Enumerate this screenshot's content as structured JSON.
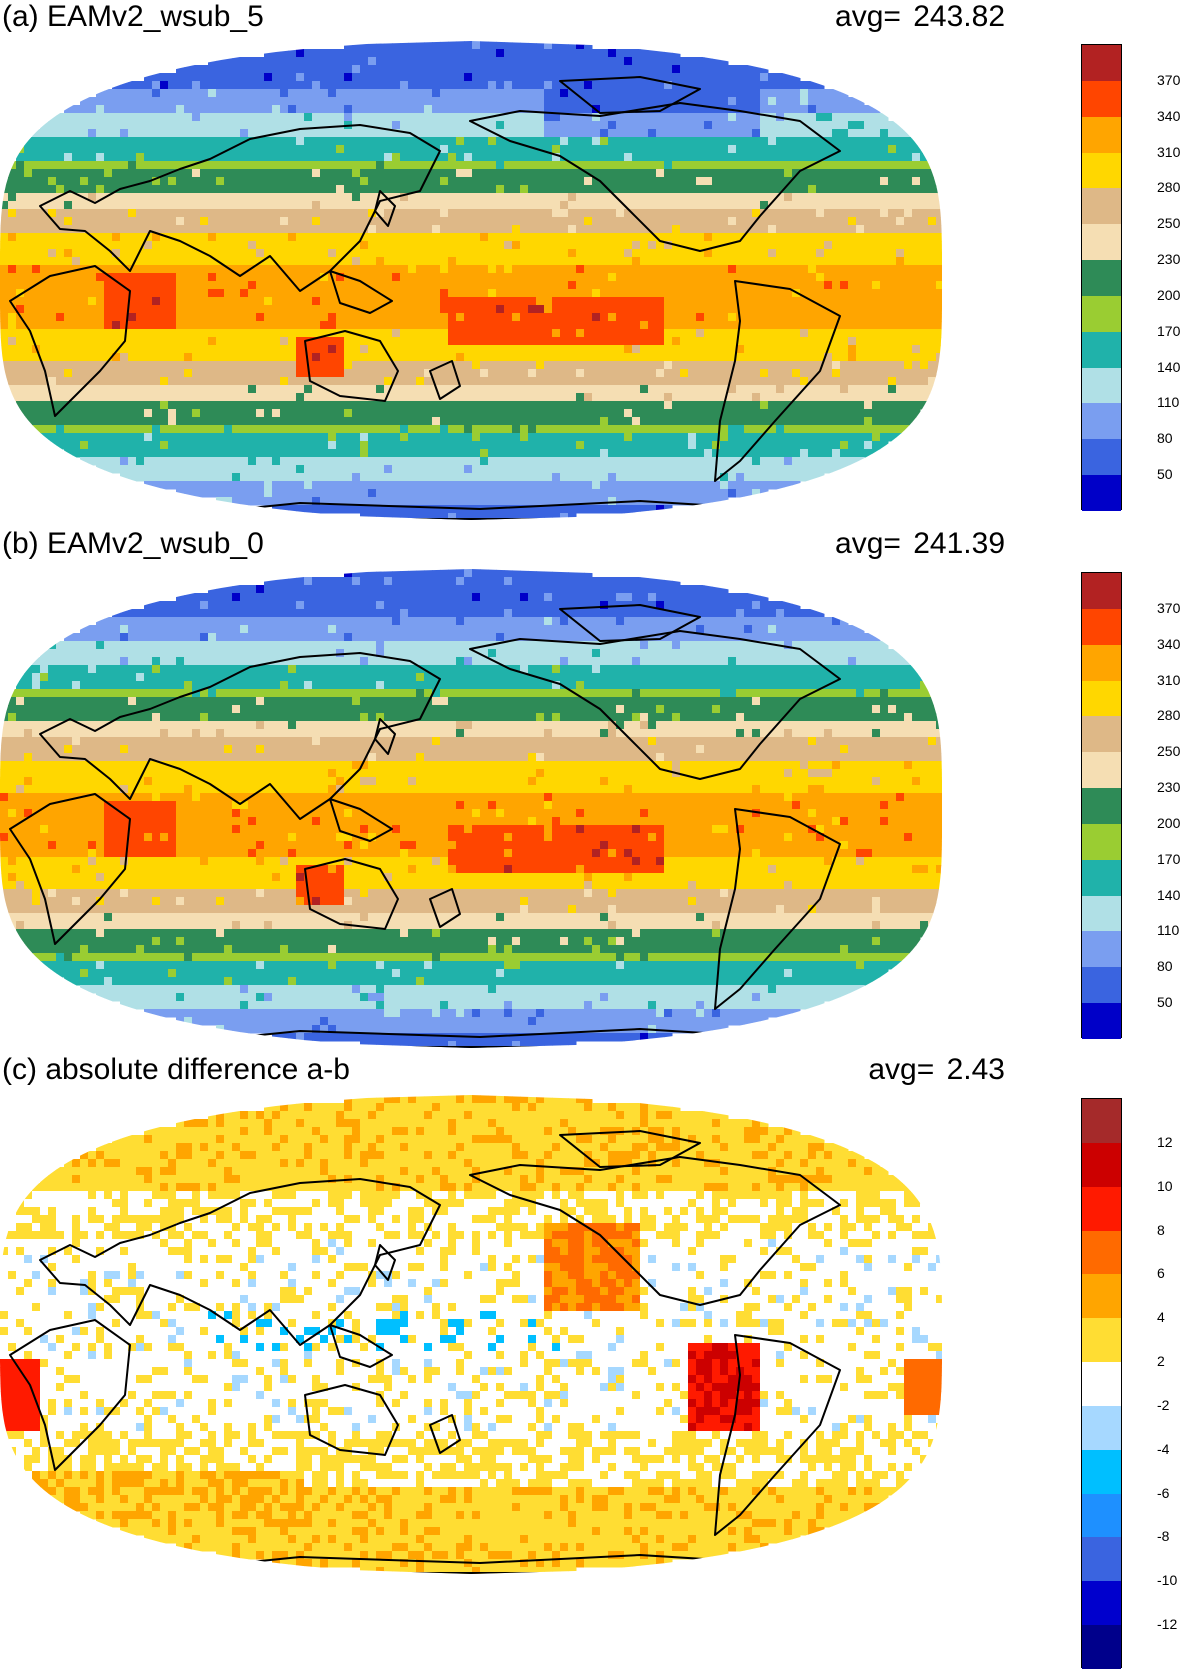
{
  "panels": [
    {
      "id": "a",
      "title": "(a) EAMv2_wsub_5",
      "avg_label": "avg=  243.82",
      "colorbar": {
        "colors": [
          "#0000c8",
          "#3a64e0",
          "#7a9ef0",
          "#b0e0e6",
          "#20b2aa",
          "#9acd32",
          "#2e8b57",
          "#f5deb3",
          "#deb887",
          "#ffd700",
          "#ffa500",
          "#ff4500",
          "#b22222"
        ],
        "labels": [
          "50",
          "80",
          "110",
          "140",
          "170",
          "200",
          "230",
          "250",
          "280",
          "310",
          "340",
          "370"
        ]
      }
    },
    {
      "id": "b",
      "title": "(b) EAMv2_wsub_0",
      "avg_label": "avg=  241.39",
      "colorbar": {
        "colors": [
          "#0000c8",
          "#3a64e0",
          "#7a9ef0",
          "#b0e0e6",
          "#20b2aa",
          "#9acd32",
          "#2e8b57",
          "#f5deb3",
          "#deb887",
          "#ffd700",
          "#ffa500",
          "#ff4500",
          "#b22222"
        ],
        "labels": [
          "50",
          "80",
          "110",
          "140",
          "170",
          "200",
          "230",
          "250",
          "280",
          "310",
          "340",
          "370"
        ]
      }
    },
    {
      "id": "c",
      "title": "(c) absolute difference a-b",
      "avg_label": "avg=    2.43",
      "colorbar": {
        "colors": [
          "#00008b",
          "#0000cd",
          "#3a64e0",
          "#1e90ff",
          "#00bfff",
          "#a6d8ff",
          "#ffffff",
          "#ffdd33",
          "#ffa500",
          "#ff6a00",
          "#ff1a00",
          "#cc0000",
          "#a52a2a"
        ],
        "labels": [
          "-12",
          "-10",
          "-8",
          "-6",
          "-4",
          "-2",
          "2",
          "4",
          "6",
          "8",
          "10",
          "12"
        ]
      }
    }
  ]
}
